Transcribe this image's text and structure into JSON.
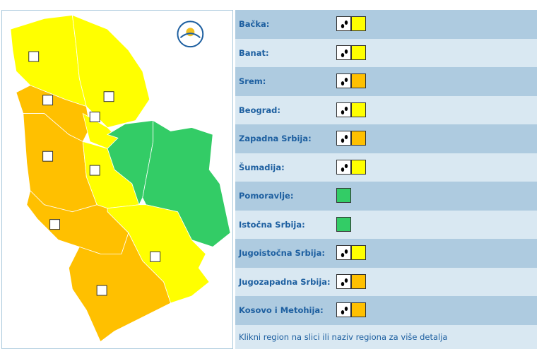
{
  "regions": [
    {
      "name": "Bačka:",
      "color": "#ffff00",
      "icon": true
    },
    {
      "name": "Banat:",
      "color": "#ffff00",
      "icon": true
    },
    {
      "name": "Srem:",
      "color": "#ffc000",
      "icon": true
    },
    {
      "name": "Beograd:",
      "color": "#ffff00",
      "icon": true
    },
    {
      "name": "Zapadna Srbija:",
      "color": "#ffc000",
      "icon": true
    },
    {
      "name": "Šumadija:",
      "color": "#ffff00",
      "icon": true
    },
    {
      "name": "Pomoravlje:",
      "color": "#33cc66",
      "icon": false
    },
    {
      "name": "Istočna Srbija:",
      "color": "#33cc66",
      "icon": false
    },
    {
      "name": "Jugoistočna Srbija:",
      "color": "#ffff00",
      "icon": true
    },
    {
      "name": "Jugozapadna Srbija:",
      "color": "#ffc000",
      "icon": true
    },
    {
      "name": "Kosovo i Metohija:",
      "color": "#ffc000",
      "icon": true
    }
  ],
  "footer_note": "Klikni region na slici ili naziv regiona za više detalja"
}
